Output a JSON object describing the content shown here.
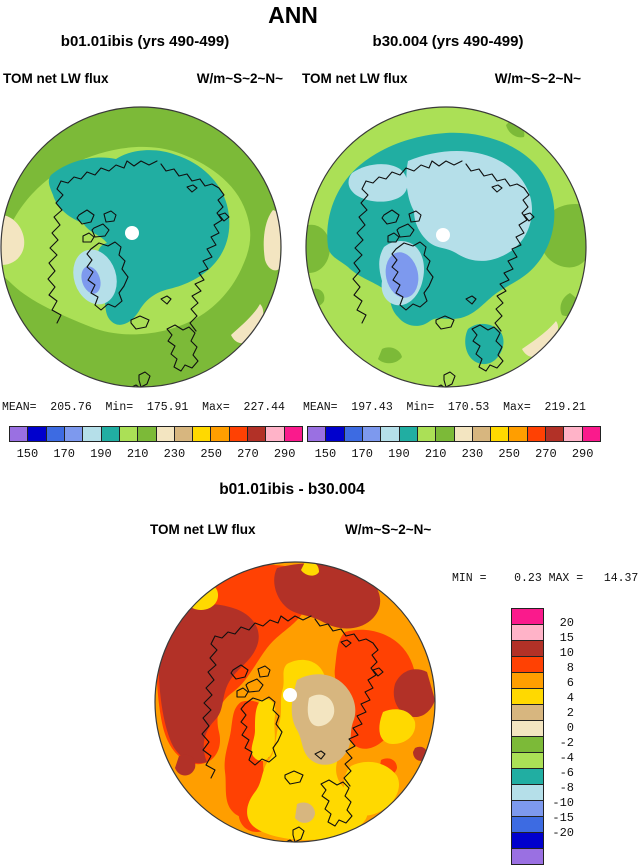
{
  "title": "ANN",
  "left_panel": {
    "subtitle": "b01.01ibis (yrs 490-499)",
    "var_label": "TOM net LW flux",
    "units_label": "W/m~S~2~N~",
    "stats_line": "MEAN=  205.76  Min=  175.91  Max=  227.44"
  },
  "right_panel": {
    "subtitle": "b30.004 (yrs 490-499)",
    "var_label": "TOM net LW flux",
    "units_label": "W/m~S~2~N~",
    "stats_line": "MEAN=  197.43  Min=  170.53  Max=  219.21"
  },
  "diff_panel": {
    "title": "b01.01ibis - b30.004",
    "var_label": "TOM net LW flux",
    "units_label": "W/m~S~2~N~",
    "stats_line": "MIN =    0.23 MAX =   14.37"
  },
  "colorbar": {
    "palette": [
      "#9a70e2",
      "#0000cd",
      "#3d6be2",
      "#7d99ee",
      "#b5dfe9",
      "#21aea2",
      "#abe056",
      "#7cba38",
      "#f3e5c1",
      "#d7b67f",
      "#ffd900",
      "#ff9e00",
      "#ff4103",
      "#b23127",
      "#ffb3c8",
      "#fa1a8c"
    ],
    "h_tick_labels": [
      "150",
      "170",
      "190",
      "210",
      "230",
      "250",
      "270",
      "290"
    ],
    "v_labels": [
      "20",
      "15",
      "10",
      "8",
      "6",
      "4",
      "2",
      "0",
      "-2",
      "-4",
      "-6",
      "-8",
      "-10",
      "-15",
      "-20"
    ]
  },
  "chart_data": {
    "type": "heatmap",
    "figure_title": "ANN",
    "projection": "north polar stereographic (filled contour maps)",
    "palette": [
      "#9a70e2",
      "#0000cd",
      "#3d6be2",
      "#7d99ee",
      "#b5dfe9",
      "#21aea2",
      "#abe056",
      "#7cba38",
      "#f3e5c1",
      "#d7b67f",
      "#ffd900",
      "#ff9e00",
      "#ff4103",
      "#b23127",
      "#ffb3c8",
      "#fa1a8c"
    ],
    "panels": [
      {
        "title": "b01.01ibis (yrs 490-499)",
        "variable": "TOM net LW flux",
        "units": "W/m~S~2~N~",
        "mean": 205.76,
        "min": 175.91,
        "max": 227.44,
        "contour_levels": [
          150,
          160,
          170,
          180,
          190,
          200,
          210,
          220,
          230,
          240,
          250,
          260,
          270,
          280,
          290
        ],
        "colorbar_tick_labels": [
          150,
          170,
          190,
          210,
          230,
          250,
          270,
          290
        ],
        "colorbar_position": "bottom"
      },
      {
        "title": "b30.004 (yrs 490-499)",
        "variable": "TOM net LW flux",
        "units": "W/m~S~2~N~",
        "mean": 197.43,
        "min": 170.53,
        "max": 219.21,
        "contour_levels": [
          150,
          160,
          170,
          180,
          190,
          200,
          210,
          220,
          230,
          240,
          250,
          260,
          270,
          280,
          290
        ],
        "colorbar_tick_labels": [
          150,
          170,
          190,
          210,
          230,
          250,
          270,
          290
        ],
        "colorbar_position": "bottom"
      },
      {
        "title": "b01.01ibis - b30.004",
        "variable": "TOM net LW flux",
        "units": "W/m~S~2~N~",
        "min": 0.23,
        "max": 14.37,
        "contour_levels": [
          -20,
          -15,
          -10,
          -8,
          -6,
          -4,
          -2,
          0,
          2,
          4,
          6,
          8,
          10,
          15,
          20
        ],
        "colorbar_position": "right"
      }
    ]
  }
}
